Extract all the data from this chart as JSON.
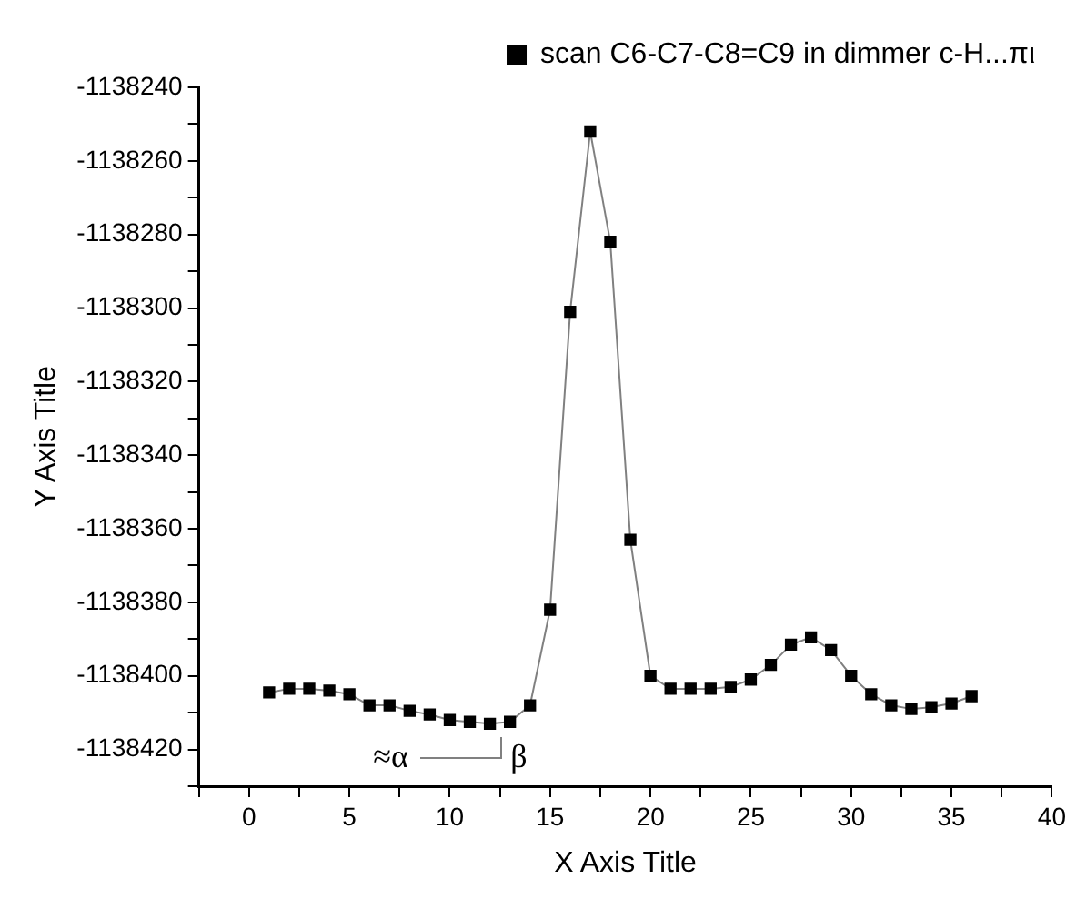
{
  "chart_data": {
    "type": "line",
    "xlabel": "X Axis Title",
    "ylabel": "Y Axis Title",
    "legend": "top right",
    "marker": "square",
    "line_style": "solid",
    "x": [
      1,
      2,
      3,
      4,
      5,
      6,
      7,
      8,
      9,
      10,
      11,
      12,
      13,
      14,
      15,
      16,
      17,
      18,
      19,
      20,
      21,
      22,
      23,
      24,
      25,
      26,
      27,
      28,
      29,
      30,
      31,
      32,
      33,
      34,
      35,
      36
    ],
    "series": [
      {
        "name": "scan C6-C7-C8=C9 in dimmer c-H...πι",
        "color": "#000000",
        "values": [
          -1138404.5,
          -1138403.5,
          -1138403.5,
          -1138404,
          -1138405,
          -1138408,
          -1138408,
          -1138409.5,
          -1138410.5,
          -1138412,
          -1138412.5,
          -1138413,
          -1138412.5,
          -1138408,
          -1138382,
          -1138301,
          -1138252,
          -1138282,
          -1138363,
          -1138400,
          -1138403.5,
          -1138403.5,
          -1138403.5,
          -1138403,
          -1138401,
          -1138397,
          -1138391.5,
          -1138389.5,
          -1138393,
          -1138400,
          -1138405,
          -1138408,
          -1138409,
          -1138408.5,
          -1138407.5,
          -1138405.5
        ]
      }
    ],
    "xlim": [
      -2.5,
      40
    ],
    "xticks": [
      {
        "value": -2.5,
        "label": null
      },
      0,
      {
        "value": 2.5,
        "label": null
      },
      5,
      {
        "value": 7.5,
        "label": null
      },
      10,
      {
        "value": 12.5,
        "label": null
      },
      15,
      {
        "value": 17.5,
        "label": null
      },
      20,
      {
        "value": 22.5,
        "label": null
      },
      25,
      {
        "value": 27.5,
        "label": null
      },
      30,
      {
        "value": 32.5,
        "label": null
      },
      35,
      {
        "value": 37.5,
        "label": null
      },
      40
    ],
    "ylim": [
      -1138430,
      -1138240
    ],
    "yticks": [
      {
        "value": -1138430,
        "label": null
      },
      -1138420,
      {
        "value": -1138410,
        "label": null
      },
      -1138400,
      {
        "value": -1138390,
        "label": null
      },
      -1138380,
      {
        "value": -1138370,
        "label": null
      },
      -1138360,
      {
        "value": -1138350,
        "label": null
      },
      -1138340,
      {
        "value": -1138330,
        "label": null
      },
      -1138320,
      {
        "value": -1138310,
        "label": null
      },
      -1138300,
      {
        "value": -1138290,
        "label": null
      },
      -1138280,
      {
        "value": -1138270,
        "label": null
      },
      -1138260,
      {
        "value": -1138250,
        "label": null
      },
      -1138240
    ],
    "annotations": [
      "≈α",
      "β"
    ]
  }
}
